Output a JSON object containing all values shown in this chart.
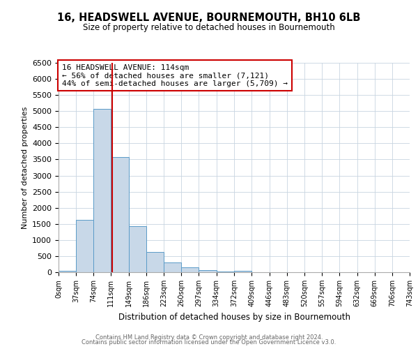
{
  "title": "16, HEADSWELL AVENUE, BOURNEMOUTH, BH10 6LB",
  "subtitle": "Size of property relative to detached houses in Bournemouth",
  "xlabel": "Distribution of detached houses by size in Bournemouth",
  "ylabel": "Number of detached properties",
  "bin_edges": [
    0,
    37,
    74,
    111,
    149,
    186,
    223,
    260,
    297,
    334,
    372,
    409,
    446,
    483,
    520,
    557,
    594,
    632,
    669,
    706,
    743
  ],
  "bin_counts": [
    50,
    1625,
    5075,
    3575,
    1425,
    625,
    300,
    150,
    75,
    25,
    50,
    0,
    0,
    0,
    0,
    0,
    0,
    0,
    0,
    0
  ],
  "bar_color": "#c8d8e8",
  "bar_edgecolor": "#5a9bc8",
  "vline_x": 114,
  "vline_color": "#cc0000",
  "annotation_text": "16 HEADSWELL AVENUE: 114sqm\n← 56% of detached houses are smaller (7,121)\n44% of semi-detached houses are larger (5,709) →",
  "annotation_box_color": "#ffffff",
  "annotation_box_edgecolor": "#cc0000",
  "ylim": [
    0,
    6500
  ],
  "yticks": [
    0,
    500,
    1000,
    1500,
    2000,
    2500,
    3000,
    3500,
    4000,
    4500,
    5000,
    5500,
    6000,
    6500
  ],
  "tick_labels": [
    "0sqm",
    "37sqm",
    "74sqm",
    "111sqm",
    "149sqm",
    "186sqm",
    "223sqm",
    "260sqm",
    "297sqm",
    "334sqm",
    "372sqm",
    "409sqm",
    "446sqm",
    "483sqm",
    "520sqm",
    "557sqm",
    "594sqm",
    "632sqm",
    "669sqm",
    "706sqm",
    "743sqm"
  ],
  "footer1": "Contains HM Land Registry data © Crown copyright and database right 2024.",
  "footer2": "Contains public sector information licensed under the Open Government Licence v3.0.",
  "bg_color": "#ffffff",
  "grid_color": "#c8d4e0"
}
